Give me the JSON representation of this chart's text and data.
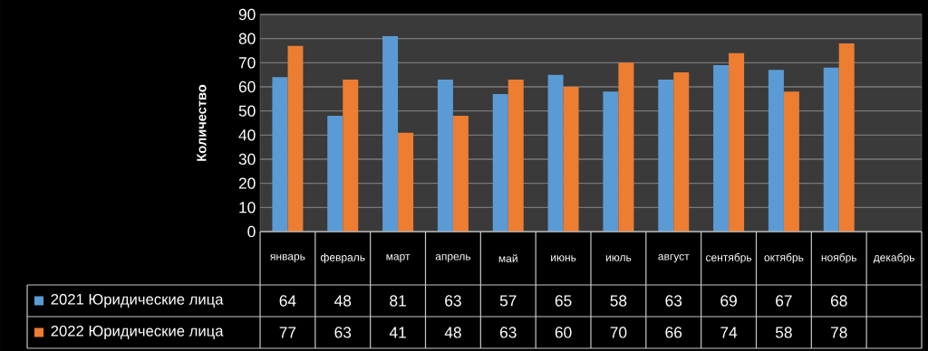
{
  "chart_data": {
    "type": "bar",
    "ylabel": "Количество",
    "categories": [
      "январь",
      "февраль",
      "март",
      "апрель",
      "май",
      "июнь",
      "июль",
      "август",
      "сентябрь",
      "октябрь",
      "ноябрь",
      "декабрь"
    ],
    "series": [
      {
        "name": "2021 Юридические лица",
        "color": "#5b9bd5",
        "values": [
          64,
          48,
          81,
          63,
          57,
          65,
          58,
          63,
          69,
          67,
          68,
          null
        ]
      },
      {
        "name": "2022 Юридические лица",
        "color": "#ed7d31",
        "values": [
          77,
          63,
          41,
          48,
          63,
          60,
          70,
          66,
          74,
          58,
          78,
          null
        ]
      }
    ],
    "ylim": [
      0,
      90
    ],
    "yticks": [
      0,
      10,
      20,
      30,
      40,
      50,
      60,
      70,
      80,
      90
    ],
    "grid": "y",
    "legend": "bottom",
    "data_labels": true
  }
}
